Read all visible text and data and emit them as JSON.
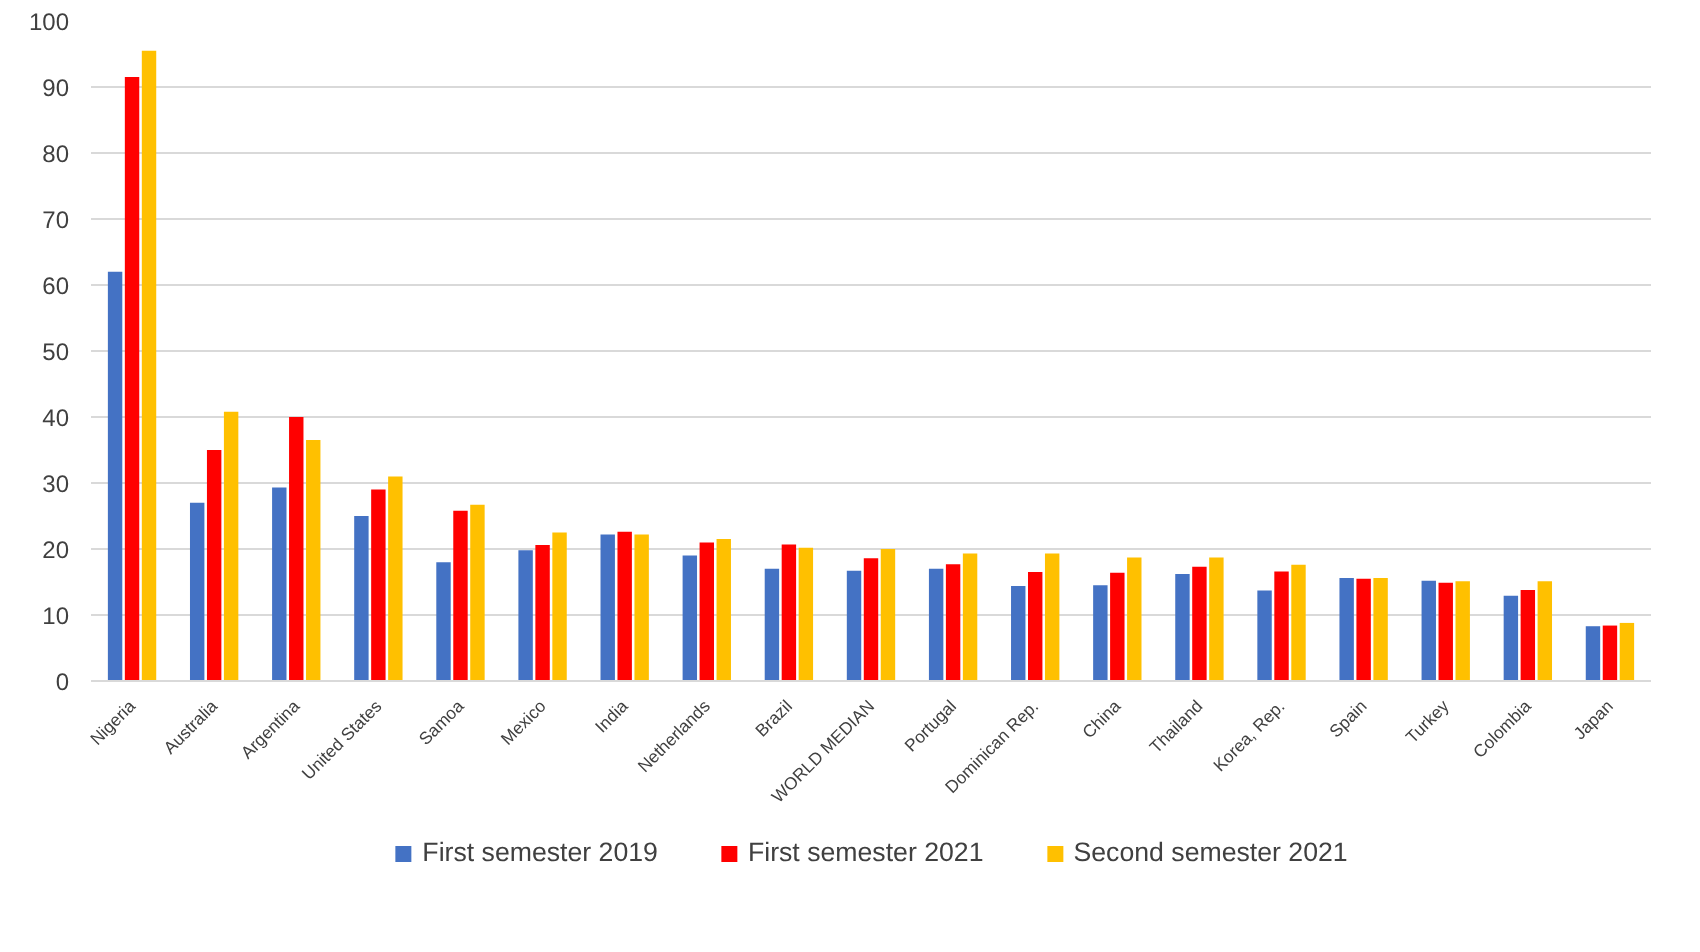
{
  "chart_data": {
    "type": "bar",
    "categories": [
      "Nigeria",
      "Australia",
      "Argentina",
      "United States",
      "Samoa",
      "Mexico",
      "India",
      "Netherlands",
      "Brazil",
      "WORLD MEDIAN",
      "Portugal",
      "Dominican Rep.",
      "China",
      "Thailand",
      "Korea, Rep.",
      "Spain",
      "Turkey",
      "Colombia",
      "Japan"
    ],
    "series": [
      {
        "name": "First semester 2019",
        "color": "#4472c4",
        "values": [
          62,
          27,
          29.3,
          25,
          18,
          19.8,
          22.2,
          19,
          17,
          16.7,
          17,
          14.4,
          14.5,
          16.2,
          13.7,
          15.6,
          15.2,
          12.9,
          8.3
        ]
      },
      {
        "name": "First semester 2021",
        "color": "#ff0000",
        "values": [
          91.5,
          35,
          40,
          29,
          25.8,
          20.6,
          22.6,
          21,
          20.7,
          18.6,
          17.7,
          16.5,
          16.4,
          17.3,
          16.6,
          15.5,
          14.9,
          13.8,
          8.4
        ]
      },
      {
        "name": "Second semester 2021",
        "color": "#ffc000",
        "values": [
          95.5,
          40.8,
          36.5,
          31,
          26.7,
          22.5,
          22.2,
          21.5,
          20.2,
          20,
          19.3,
          19.3,
          18.7,
          18.7,
          17.6,
          15.6,
          15.1,
          15.1,
          8.8
        ]
      }
    ],
    "ylim": [
      0,
      100
    ],
    "yticks": [
      0,
      10,
      20,
      30,
      40,
      50,
      60,
      70,
      80,
      90,
      100
    ],
    "grid": "y",
    "legend": "bottom"
  }
}
